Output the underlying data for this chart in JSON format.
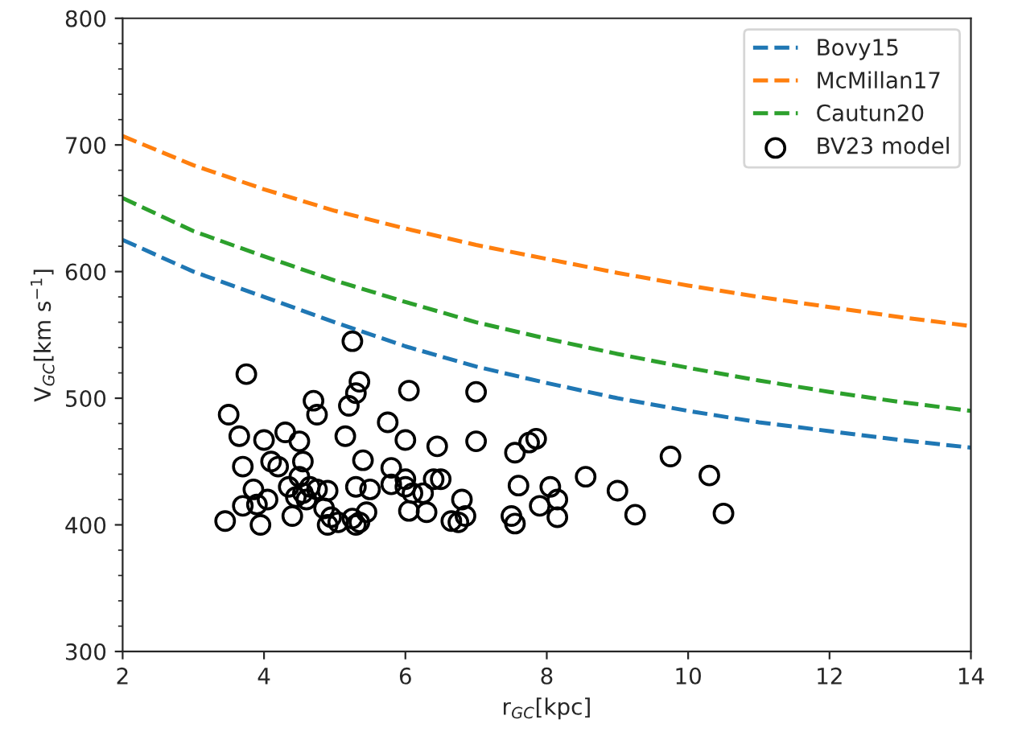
{
  "chart_data": {
    "type": "line",
    "xlabel": "r$_{GC}$[kpc]",
    "ylabel": "V$_{GC}$[km s$^{−1}$]",
    "xlim": [
      2,
      14
    ],
    "ylim": [
      300,
      800
    ],
    "xticks": [
      2,
      4,
      6,
      8,
      10,
      12,
      14
    ],
    "yticks": [
      300,
      400,
      500,
      600,
      700,
      800
    ],
    "grid": false,
    "legend": "top right",
    "line_style": "dashed",
    "series": [
      {
        "name": "Bovy15",
        "color": "#1f77b4",
        "x": [
          2,
          3,
          4,
          5,
          6,
          7,
          8,
          9,
          10,
          11,
          12,
          13,
          14
        ],
        "values": [
          625,
          600,
          580,
          560,
          541,
          525,
          512,
          500,
          490,
          481,
          474,
          467,
          461
        ]
      },
      {
        "name": "McMillan17",
        "color": "#ff7f0e",
        "x": [
          2,
          3,
          4,
          5,
          6,
          7,
          8,
          9,
          10,
          11,
          12,
          13,
          14
        ],
        "values": [
          707,
          684,
          665,
          648,
          634,
          621,
          610,
          599,
          589,
          580,
          572,
          564,
          557
        ]
      },
      {
        "name": "Cautun20",
        "color": "#2ca02c",
        "x": [
          2,
          3,
          4,
          5,
          6,
          7,
          8,
          9,
          10,
          11,
          12,
          13,
          14
        ],
        "values": [
          658,
          632,
          612,
          593,
          576,
          560,
          547,
          535,
          524,
          514,
          505,
          497,
          490
        ]
      },
      {
        "name": "BV23 model",
        "type": "scatter",
        "marker": "circle",
        "color": "#000000",
        "x": [
          3.45,
          3.5,
          3.65,
          3.7,
          3.7,
          3.75,
          3.85,
          3.9,
          3.95,
          4.0,
          4.05,
          4.1,
          4.2,
          4.3,
          4.35,
          4.4,
          4.45,
          4.5,
          4.5,
          4.55,
          4.55,
          4.6,
          4.65,
          4.7,
          4.75,
          4.75,
          4.85,
          4.9,
          4.9,
          4.95,
          5.05,
          5.15,
          5.2,
          5.25,
          5.25,
          5.3,
          5.3,
          5.3,
          5.35,
          5.35,
          5.4,
          5.45,
          5.5,
          5.75,
          5.8,
          5.8,
          6.0,
          6.0,
          6.0,
          6.05,
          6.05,
          6.1,
          6.25,
          6.3,
          6.4,
          6.45,
          6.5,
          6.65,
          6.75,
          6.8,
          6.85,
          7.0,
          7.0,
          7.5,
          7.55,
          7.55,
          7.6,
          7.75,
          7.85,
          7.9,
          8.05,
          8.15,
          8.15,
          8.55,
          9.0,
          9.25,
          9.75,
          10.3,
          10.5
        ],
        "values": [
          403,
          487,
          470,
          446,
          415,
          519,
          428,
          416,
          400,
          467,
          420,
          450,
          446,
          473,
          430,
          407,
          422,
          466,
          438,
          450,
          425,
          420,
          430,
          498,
          487,
          428,
          413,
          400,
          427,
          406,
          402,
          470,
          494,
          545,
          405,
          504,
          430,
          400,
          513,
          402,
          451,
          410,
          428,
          481,
          445,
          432,
          436,
          430,
          467,
          506,
          411,
          425,
          425,
          410,
          436,
          462,
          436,
          403,
          402,
          420,
          407,
          505,
          466,
          407,
          401,
          457,
          431,
          465,
          468,
          415,
          430,
          420,
          406,
          438,
          427,
          408,
          454,
          439,
          409
        ]
      }
    ]
  }
}
